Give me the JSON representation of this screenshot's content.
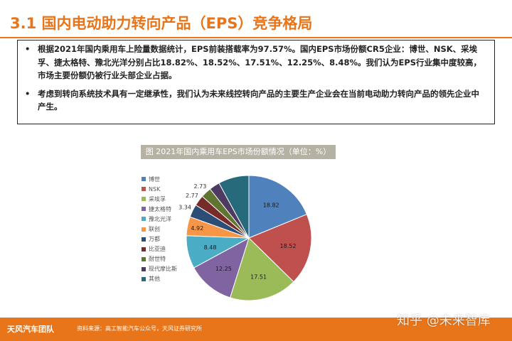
{
  "page": {
    "title": "3.1 国内电动助力转向产品（EPS）竞争格局",
    "bullets": [
      "根据2021年国内乘用车上险量数据统计，EPS前装搭载率为97.57%。国内EPS市场份额CR5企业：博世、NSK、采埃孚、捷太格特、豫北光洋分别占比18.82%、18.52%、17.51%、12.25%、8.48%。我们认为EPS行业集中度较高，市场主要份额仍被行业头部企业占据。",
      "考虑到转向系统技术具有一定继承性，我们认为未来线控转向产品的主要生产企业会在当前电动助力转向产品的领先企业中产生。"
    ],
    "bullet_symbol": "•"
  },
  "chart_title": "图 2021年国内乘用车EPS市场份额情况（单位：%）",
  "chart_data": {
    "type": "pie",
    "title": "图 2021年国内乘用车EPS市场份额情况（单位：%）",
    "unit": "%",
    "legend_position": "left",
    "slices": [
      {
        "label": "博世",
        "value": 18.82,
        "display": "18.82",
        "color": "#4f81bd"
      },
      {
        "label": "NSK",
        "value": 18.52,
        "display": "18.52",
        "color": "#c0504d"
      },
      {
        "label": "采埃孚",
        "value": 17.51,
        "display": "17.51",
        "color": "#9bbb59"
      },
      {
        "label": "捷太格特",
        "value": 12.25,
        "display": "12.25",
        "color": "#8064a2"
      },
      {
        "label": "豫北光洋",
        "value": 8.48,
        "display": "8.48",
        "color": "#4bacc6"
      },
      {
        "label": "联创",
        "value": 4.92,
        "display": "4.92",
        "color": "#f79646"
      },
      {
        "label": "万都",
        "value": 3.34,
        "display": "3.34",
        "color": "#2c4d75"
      },
      {
        "label": "比亚迪",
        "value": 2.77,
        "display": "2.77",
        "color": "#772c2a"
      },
      {
        "label": "耐世特",
        "value": 2.73,
        "display": "2.73",
        "color": "#5f7530"
      },
      {
        "label": "现代摩比斯",
        "value": 2.73,
        "display": "",
        "color": "#4d3b62"
      },
      {
        "label": "其他",
        "value": 7.93,
        "display": "",
        "color": "#276a7c"
      }
    ]
  },
  "footer": {
    "team": "天风汽车团队",
    "source": "资料来源：高工智能汽车公众号，天风证券研究所"
  },
  "watermark": "知乎 @未来智库"
}
